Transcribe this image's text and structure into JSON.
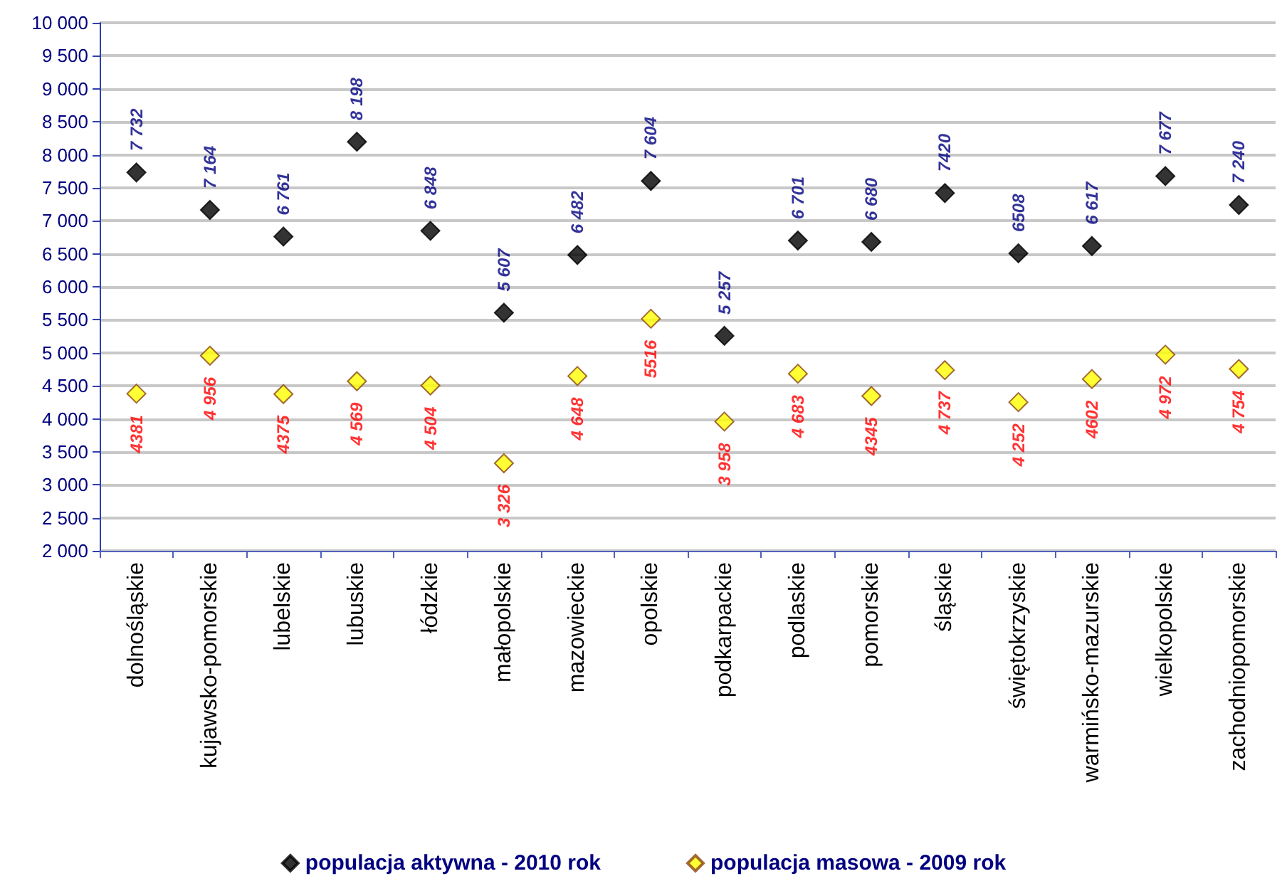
{
  "chart_data": {
    "type": "scatter",
    "marker": "diamond",
    "grid": "y",
    "legend": "bottom",
    "categories": [
      "dolnośląskie",
      "kujawsko-pomorskie",
      "lubelskie",
      "lubuskie",
      "łódzkie",
      "małopolskie",
      "mazowieckie",
      "opolskie",
      "podkarpackie",
      "podlaskie",
      "pomorskie",
      "śląskie",
      "świętokrzyskie",
      "warmińsko-mazurskie",
      "wielkopolskie",
      "zachodniopomorskie"
    ],
    "ylim": [
      2000,
      10000
    ],
    "yticks": [
      {
        "value": 2000,
        "label": "2 000"
      },
      {
        "value": 2500,
        "label": "2 500"
      },
      {
        "value": 3000,
        "label": "3 000"
      },
      {
        "value": 3500,
        "label": "3 500"
      },
      {
        "value": 4000,
        "label": "4 000"
      },
      {
        "value": 4500,
        "label": "4 500"
      },
      {
        "value": 5000,
        "label": "5 000"
      },
      {
        "value": 5500,
        "label": "5 500"
      },
      {
        "value": 6000,
        "label": "6 000"
      },
      {
        "value": 6500,
        "label": "6 500"
      },
      {
        "value": 7000,
        "label": "7 000"
      },
      {
        "value": 7500,
        "label": "7 500"
      },
      {
        "value": 8000,
        "label": "8 000"
      },
      {
        "value": 8500,
        "label": "8 500"
      },
      {
        "value": 9000,
        "label": "9 000"
      },
      {
        "value": 9500,
        "label": "9 500"
      },
      {
        "value": 10000,
        "label": "10 000"
      }
    ],
    "series": [
      {
        "name": "populacja aktywna - 2010 rok",
        "color": "#000000",
        "values": [
          7732,
          7164,
          6761,
          8198,
          6848,
          5607,
          6482,
          7604,
          5257,
          6701,
          6680,
          7420,
          6508,
          6617,
          7677,
          7240
        ],
        "value_labels": [
          "7 732",
          "7 164",
          "6 761",
          "8 198",
          "6 848",
          "5 607",
          "6 482",
          "7 604",
          "5 257",
          "6 701",
          "6 680",
          "7420",
          "6508",
          "6 617",
          "7 677",
          "7 240"
        ]
      },
      {
        "name": "populacja masowa - 2009 rok",
        "color": "#ffff00",
        "values": [
          4381,
          4956,
          4375,
          4569,
          4504,
          3326,
          4648,
          5516,
          3958,
          4683,
          4345,
          4737,
          4252,
          4602,
          4972,
          4754
        ],
        "value_labels": [
          "4381",
          "4 956",
          "4375",
          "4 569",
          "4 504",
          "3 326",
          "4 648",
          "5516",
          "3 958",
          "4 683",
          "4345",
          "4 737",
          "4 252",
          "4602",
          "4 972",
          "4 754"
        ]
      }
    ]
  }
}
